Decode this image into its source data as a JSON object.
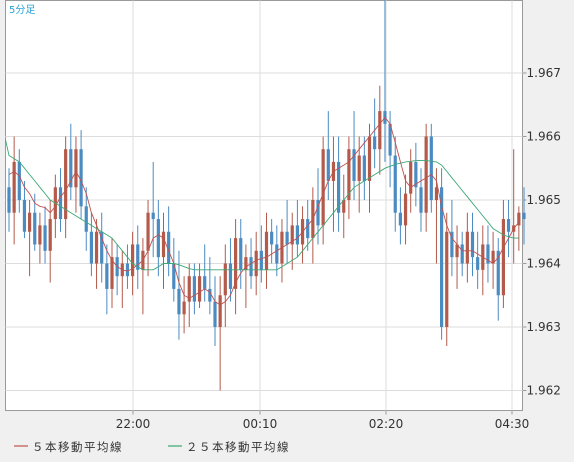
{
  "chart_data": {
    "type": "candlestick",
    "title": "5分足",
    "legend": [
      "５本移動平均線",
      "２５本移動平均線"
    ],
    "y_ticks": [
      "1.962",
      "1.963",
      "1.964",
      "1.965",
      "1.966",
      "1.967"
    ],
    "x_ticks": [
      "22:00",
      "00:10",
      "02:20",
      "04:30"
    ],
    "ylim": [
      1.9618,
      1.9684
    ],
    "grid": true,
    "colors": {
      "bull": "#b35a4a",
      "bear": "#4a8bc2",
      "ma5": "#c0504d",
      "ma25": "#3aa876",
      "title": "#29a3d6"
    },
    "candles": [
      [
        1.9652,
        1.9655,
        1.9645,
        1.9648
      ],
      [
        1.9648,
        1.966,
        1.9643,
        1.9656
      ],
      [
        1.9656,
        1.9658,
        1.9648,
        1.965
      ],
      [
        1.965,
        1.9653,
        1.9644,
        1.9645
      ],
      [
        1.9645,
        1.965,
        1.9638,
        1.9648
      ],
      [
        1.9648,
        1.9651,
        1.9642,
        1.9643
      ],
      [
        1.9643,
        1.9648,
        1.964,
        1.9646
      ],
      [
        1.9646,
        1.9649,
        1.964,
        1.9642
      ],
      [
        1.9642,
        1.965,
        1.9637,
        1.9647
      ],
      [
        1.9647,
        1.9654,
        1.9644,
        1.9652
      ],
      [
        1.9652,
        1.9655,
        1.9645,
        1.9647
      ],
      [
        1.9647,
        1.966,
        1.9644,
        1.9658
      ],
      [
        1.9658,
        1.9662,
        1.965,
        1.9652
      ],
      [
        1.9652,
        1.966,
        1.9648,
        1.9658
      ],
      [
        1.9658,
        1.9661,
        1.9647,
        1.9649
      ],
      [
        1.9649,
        1.9652,
        1.9642,
        1.9645
      ],
      [
        1.9645,
        1.9648,
        1.9638,
        1.964
      ],
      [
        1.964,
        1.9647,
        1.9636,
        1.9645
      ],
      [
        1.9645,
        1.9648,
        1.9637,
        1.964
      ],
      [
        1.964,
        1.9643,
        1.9632,
        1.9636
      ],
      [
        1.9636,
        1.9644,
        1.9633,
        1.9641
      ],
      [
        1.9641,
        1.9643,
        1.9635,
        1.9638
      ],
      [
        1.9638,
        1.9642,
        1.9633,
        1.964
      ],
      [
        1.964,
        1.9643,
        1.9636,
        1.9638
      ],
      [
        1.9638,
        1.9645,
        1.9635,
        1.9643
      ],
      [
        1.9643,
        1.9646,
        1.9636,
        1.9639
      ],
      [
        1.9639,
        1.9644,
        1.9632,
        1.9642
      ],
      [
        1.9642,
        1.965,
        1.9638,
        1.9648
      ],
      [
        1.9648,
        1.9656,
        1.9641,
        1.9647
      ],
      [
        1.9647,
        1.965,
        1.9638,
        1.9641
      ],
      [
        1.9641,
        1.9648,
        1.9636,
        1.9645
      ],
      [
        1.9645,
        1.9649,
        1.9638,
        1.964
      ],
      [
        1.964,
        1.9644,
        1.9634,
        1.9636
      ],
      [
        1.9636,
        1.9642,
        1.9628,
        1.9632
      ],
      [
        1.9632,
        1.9638,
        1.9629,
        1.9634
      ],
      [
        1.9634,
        1.964,
        1.963,
        1.9638
      ],
      [
        1.9638,
        1.964,
        1.9632,
        1.9634
      ],
      [
        1.9634,
        1.964,
        1.9633,
        1.9638
      ],
      [
        1.9638,
        1.9643,
        1.9634,
        1.9636
      ],
      [
        1.9636,
        1.9641,
        1.9632,
        1.9634
      ],
      [
        1.9634,
        1.9638,
        1.9627,
        1.963
      ],
      [
        1.963,
        1.9638,
        1.962,
        1.9635
      ],
      [
        1.9635,
        1.9643,
        1.963,
        1.964
      ],
      [
        1.964,
        1.9644,
        1.9634,
        1.9636
      ],
      [
        1.9636,
        1.9647,
        1.9632,
        1.9644
      ],
      [
        1.9644,
        1.9647,
        1.9636,
        1.9639
      ],
      [
        1.9639,
        1.9643,
        1.9633,
        1.9641
      ],
      [
        1.9641,
        1.9644,
        1.9636,
        1.9638
      ],
      [
        1.9638,
        1.9645,
        1.9635,
        1.9642
      ],
      [
        1.9642,
        1.9646,
        1.9637,
        1.9639
      ],
      [
        1.9639,
        1.9648,
        1.9636,
        1.9645
      ],
      [
        1.9645,
        1.9647,
        1.964,
        1.9643
      ],
      [
        1.9643,
        1.9646,
        1.9638,
        1.964
      ],
      [
        1.964,
        1.9647,
        1.9637,
        1.9645
      ],
      [
        1.9645,
        1.965,
        1.964,
        1.9643
      ],
      [
        1.9643,
        1.9648,
        1.9639,
        1.9646
      ],
      [
        1.9646,
        1.965,
        1.9641,
        1.9643
      ],
      [
        1.9643,
        1.9649,
        1.964,
        1.9647
      ],
      [
        1.9647,
        1.965,
        1.9642,
        1.9644
      ],
      [
        1.9644,
        1.9652,
        1.964,
        1.965
      ],
      [
        1.965,
        1.9655,
        1.9643,
        1.9646
      ],
      [
        1.9646,
        1.966,
        1.9643,
        1.9658
      ],
      [
        1.9658,
        1.9664,
        1.965,
        1.9653
      ],
      [
        1.9653,
        1.966,
        1.9645,
        1.9656
      ],
      [
        1.9656,
        1.966,
        1.9645,
        1.9648
      ],
      [
        1.9648,
        1.9654,
        1.9644,
        1.965
      ],
      [
        1.965,
        1.966,
        1.9647,
        1.9658
      ],
      [
        1.9658,
        1.9664,
        1.965,
        1.9653
      ],
      [
        1.9653,
        1.966,
        1.9648,
        1.9657
      ],
      [
        1.9657,
        1.966,
        1.965,
        1.9653
      ],
      [
        1.9653,
        1.9662,
        1.9648,
        1.966
      ],
      [
        1.966,
        1.9666,
        1.9655,
        1.9658
      ],
      [
        1.9658,
        1.9668,
        1.9654,
        1.9664
      ],
      [
        1.9664,
        1.9683,
        1.9656,
        1.9662
      ],
      [
        1.9662,
        1.9664,
        1.9652,
        1.9657
      ],
      [
        1.9657,
        1.966,
        1.9645,
        1.9648
      ],
      [
        1.9648,
        1.9652,
        1.9643,
        1.9646
      ],
      [
        1.9646,
        1.9654,
        1.9643,
        1.9651
      ],
      [
        1.9651,
        1.9658,
        1.9648,
        1.9656
      ],
      [
        1.9656,
        1.9659,
        1.9649,
        1.9652
      ],
      [
        1.9652,
        1.9655,
        1.9645,
        1.9648
      ],
      [
        1.9648,
        1.9662,
        1.9645,
        1.966
      ],
      [
        1.966,
        1.9662,
        1.9648,
        1.965
      ],
      [
        1.965,
        1.9655,
        1.964,
        1.9652
      ],
      [
        1.9652,
        1.9655,
        1.9628,
        1.963
      ],
      [
        1.963,
        1.9648,
        1.9627,
        1.9645
      ],
      [
        1.9645,
        1.965,
        1.9638,
        1.9641
      ],
      [
        1.9641,
        1.9646,
        1.9636,
        1.9643
      ],
      [
        1.9643,
        1.9645,
        1.9638,
        1.964
      ],
      [
        1.964,
        1.9648,
        1.9637,
        1.9645
      ],
      [
        1.9645,
        1.9648,
        1.9638,
        1.9641
      ],
      [
        1.9641,
        1.9645,
        1.9636,
        1.9639
      ],
      [
        1.9639,
        1.9646,
        1.9635,
        1.9643
      ],
      [
        1.9643,
        1.9646,
        1.9637,
        1.964
      ],
      [
        1.964,
        1.9645,
        1.9636,
        1.9642
      ],
      [
        1.9642,
        1.9644,
        1.9631,
        1.9635
      ],
      [
        1.9635,
        1.965,
        1.9633,
        1.9647
      ],
      [
        1.9647,
        1.965,
        1.9641,
        1.9645
      ],
      [
        1.9645,
        1.9658,
        1.964,
        1.9646
      ],
      [
        1.9646,
        1.9649,
        1.9642,
        1.9648
      ],
      [
        1.9648,
        1.9652,
        1.9643,
        1.9647
      ]
    ],
    "ma5": [
      1.9654,
      1.96545,
      1.96538,
      1.9652,
      1.9651,
      1.96495,
      1.9649,
      1.96488,
      1.9648,
      1.9649,
      1.96505,
      1.96515,
      1.9653,
      1.96545,
      1.9653,
      1.9651,
      1.9648,
      1.9646,
      1.9644,
      1.9642,
      1.96405,
      1.96395,
      1.9639,
      1.96388,
      1.96392,
      1.96398,
      1.96405,
      1.9642,
      1.9644,
      1.96445,
      1.9644,
      1.9642,
      1.964,
      1.9637,
      1.9635,
      1.96345,
      1.9635,
      1.96355,
      1.9636,
      1.96355,
      1.9634,
      1.96335,
      1.9634,
      1.9635,
      1.9637,
      1.96385,
      1.96395,
      1.964,
      1.96405,
      1.96408,
      1.9641,
      1.96415,
      1.9642,
      1.96425,
      1.9643,
      1.96435,
      1.9644,
      1.9645,
      1.9646,
      1.9647,
      1.9649,
      1.9651,
      1.9653,
      1.96545,
      1.9655,
      1.96555,
      1.9656,
      1.9657,
      1.9658,
      1.9659,
      1.966,
      1.9661,
      1.9662,
      1.9663,
      1.9662,
      1.9659,
      1.9656,
      1.9653,
      1.9652,
      1.96525,
      1.9653,
      1.96535,
      1.9654,
      1.9653,
      1.9649,
      1.9646,
      1.9644,
      1.9643,
      1.9642,
      1.9642,
      1.9642,
      1.96415,
      1.9641,
      1.96405,
      1.964,
      1.9641,
      1.96425,
      1.9644,
      1.96455,
      1.96465
    ],
    "ma25": [
      1.9657,
      1.96565,
      1.9656,
      1.9655,
      1.9654,
      1.9653,
      1.9652,
      1.9651,
      1.965,
      1.96495,
      1.9649,
      1.96485,
      1.9648,
      1.96475,
      1.9647,
      1.96465,
      1.9646,
      1.96455,
      1.9645,
      1.96445,
      1.9644,
      1.9643,
      1.9642,
      1.9641,
      1.964,
      1.96395,
      1.9639,
      1.9639,
      1.9639,
      1.96395,
      1.964,
      1.964,
      1.964,
      1.96398,
      1.96395,
      1.96392,
      1.9639,
      1.9639,
      1.9639,
      1.9639,
      1.9639,
      1.9639,
      1.9639,
      1.9639,
      1.9639,
      1.9639,
      1.9639,
      1.9639,
      1.9639,
      1.9639,
      1.9639,
      1.9639,
      1.9639,
      1.96395,
      1.964,
      1.96405,
      1.9641,
      1.9642,
      1.9643,
      1.9644,
      1.9645,
      1.9646,
      1.9647,
      1.9648,
      1.9649,
      1.965,
      1.9651,
      1.9652,
      1.96525,
      1.9653,
      1.96535,
      1.9654,
      1.96545,
      1.9655,
      1.96553,
      1.96556,
      1.96558,
      1.9656,
      1.96561,
      1.96562,
      1.96562,
      1.96562,
      1.96561,
      1.9656,
      1.96555,
      1.96545,
      1.96535,
      1.96525,
      1.96515,
      1.96505,
      1.96495,
      1.96485,
      1.96475,
      1.96465,
      1.96455,
      1.9645,
      1.96445,
      1.96442,
      1.9644,
      1.9644
    ]
  }
}
